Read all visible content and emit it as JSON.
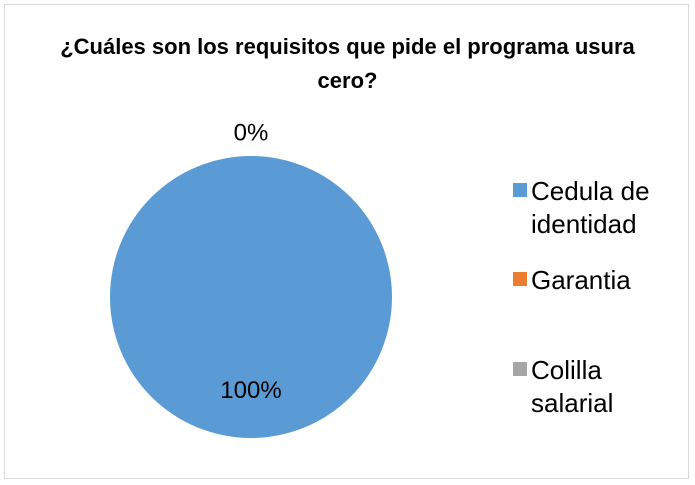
{
  "chart_data": {
    "type": "pie",
    "title": "¿Cuáles son los requisitos que pide el programa usura cero?",
    "categories": [
      "Cedula de identidad",
      "Garantia",
      "Colilla salarial"
    ],
    "values": [
      100,
      0,
      0
    ],
    "value_labels": [
      "100%",
      "0%",
      null
    ],
    "colors": [
      "#5b9bd5",
      "#ed7d31",
      "#a5a5a5"
    ],
    "legend": "right"
  }
}
